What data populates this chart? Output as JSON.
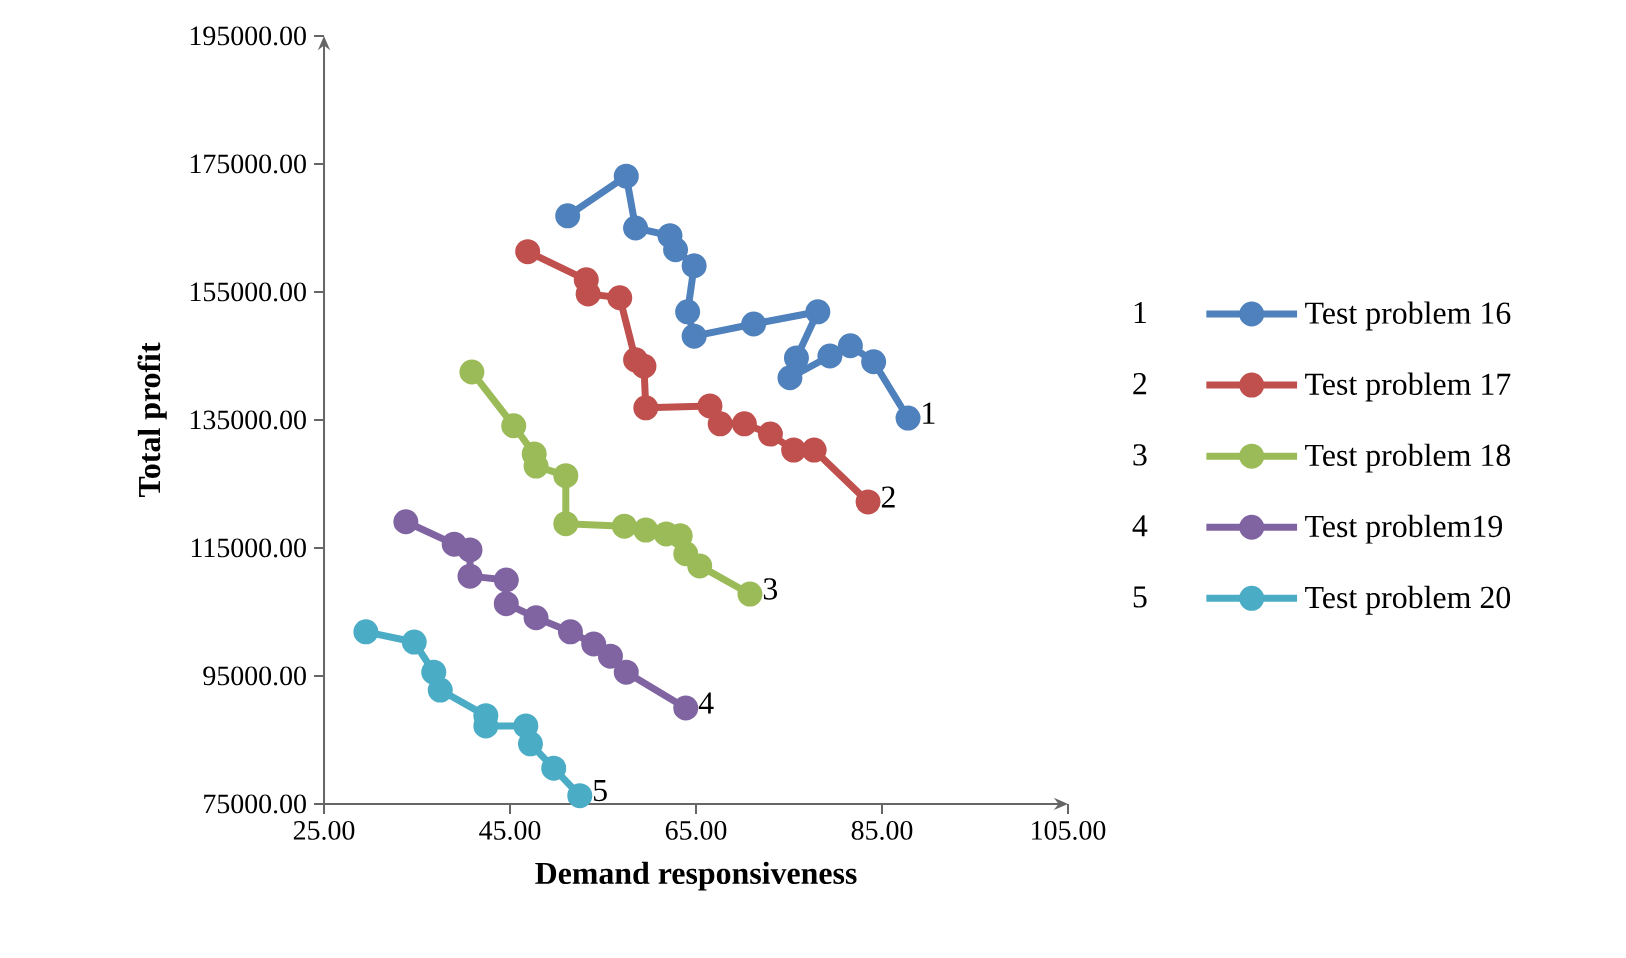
{
  "chart_data": {
    "type": "line",
    "xlabel": "Demand responsiveness",
    "ylabel": "Total profit",
    "xlim": [
      25,
      105
    ],
    "ylim": [
      75000,
      195000
    ],
    "xticks": [
      {
        "value": 25,
        "label": "25.00"
      },
      {
        "value": 45,
        "label": "45.00"
      },
      {
        "value": 65,
        "label": "65.00"
      },
      {
        "value": 85,
        "label": "85.00"
      },
      {
        "value": 105,
        "label": "105.00"
      }
    ],
    "yticks": [
      {
        "value": 75000,
        "label": "75000.00"
      },
      {
        "value": 95000,
        "label": "95000.00"
      },
      {
        "value": 115000,
        "label": "115000.00"
      },
      {
        "value": 135000,
        "label": "135000.00"
      },
      {
        "value": 155000,
        "label": "155000.00"
      },
      {
        "value": 175000,
        "label": "175000.00"
      },
      {
        "value": 195000,
        "label": "195000.00"
      }
    ],
    "grid": false,
    "legend": "right",
    "marker": "circle",
    "line_style": "solid",
    "series": [
      {
        "name": "Test problem 16",
        "color": "#4f81bd",
        "x": [
          51.2,
          57.5,
          58.5,
          62.2,
          62.8,
          64.8,
          64.1,
          64.8,
          71.2,
          78.1,
          75.8,
          75.1,
          79.4,
          81.6,
          84.1,
          87.8
        ],
        "values": [
          166900,
          173100,
          165000,
          163800,
          161600,
          159100,
          151900,
          148100,
          150000,
          151900,
          144700,
          141600,
          145000,
          146600,
          144100,
          135300
        ]
      },
      {
        "name": "Test problem 17",
        "color": "#c0504d",
        "x": [
          46.9,
          53.2,
          53.4,
          56.8,
          58.5,
          59.4,
          59.6,
          66.5,
          67.6,
          70.2,
          73.0,
          75.5,
          77.7,
          83.5
        ],
        "values": [
          161300,
          156900,
          154700,
          154100,
          144400,
          143400,
          136900,
          137200,
          134400,
          134400,
          132800,
          130300,
          130300,
          122200
        ]
      },
      {
        "name": "Test problem 18",
        "color": "#9bbb59",
        "x": [
          40.9,
          45.4,
          47.6,
          47.8,
          51.0,
          51.0,
          57.3,
          59.6,
          61.8,
          63.3,
          63.9,
          65.4,
          70.8
        ],
        "values": [
          142500,
          134100,
          129700,
          127800,
          126300,
          118800,
          118400,
          117800,
          117200,
          116900,
          114100,
          112200,
          107800
        ]
      },
      {
        "name": "Test problem19",
        "color": "#8064a2",
        "x": [
          33.8,
          39.0,
          40.7,
          40.7,
          44.6,
          44.6,
          47.8,
          51.5,
          54.0,
          55.8,
          57.5,
          63.9
        ],
        "values": [
          119100,
          115600,
          114700,
          110600,
          110000,
          106300,
          104100,
          101900,
          100000,
          98100,
          95600,
          90000
        ]
      },
      {
        "name": "Test problem 20",
        "color": "#4bacc6",
        "x": [
          29.5,
          34.7,
          36.8,
          37.5,
          42.4,
          42.4,
          46.7,
          47.2,
          49.7,
          52.5
        ],
        "values": [
          101900,
          100300,
          95600,
          92800,
          88800,
          87200,
          87200,
          84400,
          80600,
          76300
        ]
      }
    ],
    "annotations": [
      {
        "text": "1",
        "x": 87.8,
        "y": 135300
      },
      {
        "text": "2",
        "x": 83.5,
        "y": 122200
      },
      {
        "text": "3",
        "x": 70.8,
        "y": 107800
      },
      {
        "text": "4",
        "x": 63.9,
        "y": 90000
      },
      {
        "text": "5",
        "x": 52.5,
        "y": 76300
      },
      "1",
      "2",
      "3",
      "4",
      "5"
    ]
  }
}
